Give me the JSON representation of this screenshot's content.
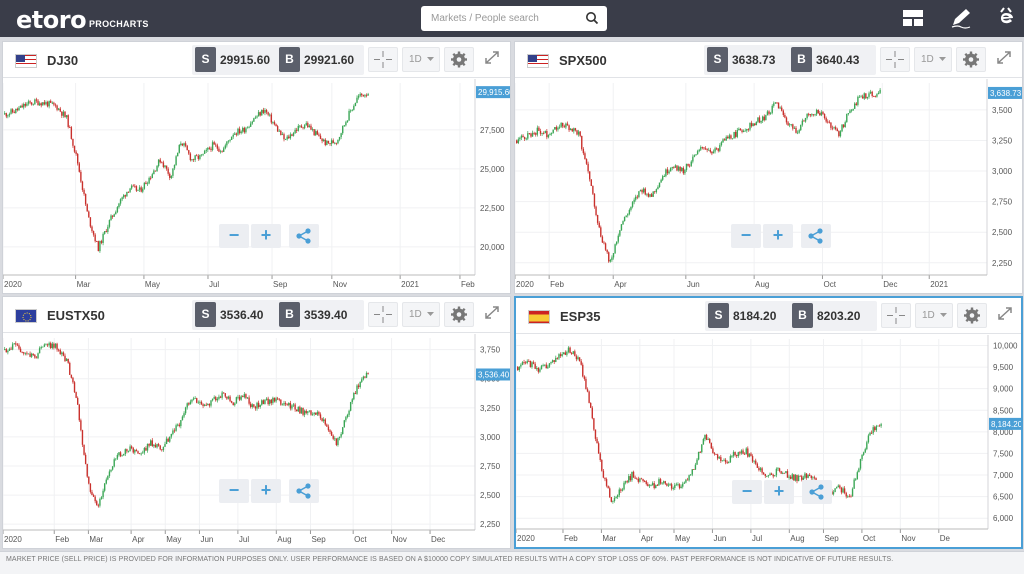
{
  "header": {
    "logo_text": "etoro",
    "logo_sub": "PROCHARTS",
    "search": {
      "placeholder": "Markets / People search"
    },
    "icons": [
      "layout-icon",
      "pencil-icon",
      "etoro-e-icon"
    ]
  },
  "panels": [
    {
      "id": "dj30",
      "instrument": "DJ30",
      "flag": "us-flag-icon",
      "sell_label": "S",
      "sell": "29915.60",
      "buy_label": "B",
      "buy": "29921.60",
      "timeframe": "1D",
      "active": false,
      "chart_data": {
        "type": "candlestick",
        "y_ticks": [
          "27,500",
          "25,000",
          "22,500",
          "20,000"
        ],
        "y_tick_values": [
          27500,
          25000,
          22500,
          20000
        ],
        "ylim": [
          18200,
          30500
        ],
        "x_ticks": [
          "2020",
          "Mar",
          "May",
          "Jul",
          "Sep",
          "Nov",
          "2021",
          "Feb"
        ],
        "x_tick_pos": [
          0.0,
          0.17,
          0.33,
          0.48,
          0.63,
          0.77,
          0.93,
          1.07
        ],
        "last_price": 29915.6,
        "last_label": "29,915.60",
        "path": [
          28500,
          28700,
          29100,
          29300,
          29200,
          29000,
          28200,
          25500,
          22000,
          19900,
          21500,
          22800,
          23800,
          23600,
          24500,
          25600,
          24500,
          26800,
          25600,
          25800,
          26500,
          26200,
          27300,
          27500,
          28200,
          28800,
          27800,
          26800,
          27500,
          27900,
          27200,
          26600,
          26800,
          28300,
          29600,
          29915
        ]
      }
    },
    {
      "id": "spx500",
      "instrument": "SPX500",
      "flag": "us-flag-icon",
      "sell_label": "S",
      "sell": "3638.73",
      "buy_label": "B",
      "buy": "3640.43",
      "timeframe": "1D",
      "active": false,
      "chart_data": {
        "type": "candlestick",
        "y_ticks": [
          "3,500",
          "3,250",
          "3,000",
          "2,750",
          "2,500",
          "2,250"
        ],
        "y_tick_values": [
          3500,
          3250,
          3000,
          2750,
          2500,
          2250
        ],
        "ylim": [
          2150,
          3720
        ],
        "x_ticks": [
          "2020",
          "Feb",
          "Apr",
          "Jun",
          "Aug",
          "Oct",
          "Dec",
          "2021"
        ],
        "x_tick_pos": [
          0.0,
          0.08,
          0.23,
          0.4,
          0.56,
          0.72,
          0.86,
          0.97
        ],
        "last_price": 3638.73,
        "last_label": "3,638.73",
        "path": [
          3250,
          3290,
          3330,
          3300,
          3380,
          3360,
          3300,
          2950,
          2500,
          2250,
          2550,
          2700,
          2850,
          2800,
          2950,
          3050,
          3000,
          3100,
          3200,
          3150,
          3250,
          3300,
          3350,
          3400,
          3450,
          3560,
          3400,
          3330,
          3450,
          3500,
          3400,
          3300,
          3480,
          3600,
          3630,
          3638
        ]
      }
    },
    {
      "id": "eustx50",
      "instrument": "EUSTX50",
      "flag": "eu-flag-icon",
      "sell_label": "S",
      "sell": "3536.40",
      "buy_label": "B",
      "buy": "3539.40",
      "timeframe": "1D",
      "active": false,
      "chart_data": {
        "type": "candlestick",
        "y_ticks": [
          "3,750",
          "3,500",
          "3,250",
          "3,000",
          "2,750",
          "2,500",
          "2,250"
        ],
        "y_tick_values": [
          3750,
          3500,
          3250,
          3000,
          2750,
          2500,
          2250
        ],
        "ylim": [
          2200,
          3850
        ],
        "x_ticks": [
          "2020",
          "Feb",
          "Mar",
          "Apr",
          "May",
          "Jun",
          "Jul",
          "Aug",
          "Sep",
          "Oct",
          "Nov",
          "Dec"
        ],
        "x_tick_pos": [
          0.0,
          0.12,
          0.2,
          0.3,
          0.38,
          0.46,
          0.55,
          0.64,
          0.72,
          0.82,
          0.91,
          1.0
        ],
        "last_price": 3536.4,
        "last_label": "3,536.40",
        "path": [
          3750,
          3780,
          3720,
          3700,
          3800,
          3780,
          3650,
          3300,
          2600,
          2400,
          2700,
          2850,
          2900,
          2850,
          2950,
          2900,
          3000,
          3150,
          3350,
          3280,
          3300,
          3380,
          3300,
          3350,
          3250,
          3300,
          3320,
          3280,
          3250,
          3200,
          3220,
          3100,
          2950,
          3200,
          3450,
          3536
        ]
      }
    },
    {
      "id": "esp35",
      "instrument": "ESP35",
      "flag": "es-flag-icon",
      "sell_label": "S",
      "sell": "8184.20",
      "buy_label": "B",
      "buy": "8203.20",
      "timeframe": "1D",
      "active": true,
      "chart_data": {
        "type": "candlestick",
        "y_ticks": [
          "10,000",
          "9,500",
          "9,000",
          "8,500",
          "8,000",
          "7,500",
          "7,000",
          "6,500",
          "6,000"
        ],
        "y_tick_values": [
          10000,
          9500,
          9000,
          8500,
          8000,
          7500,
          7000,
          6500,
          6000
        ],
        "ylim": [
          5750,
          10150
        ],
        "x_ticks": [
          "2020",
          "Feb",
          "Mar",
          "Apr",
          "May",
          "Jun",
          "Jul",
          "Aug",
          "Sep",
          "Oct",
          "Nov",
          "De"
        ],
        "x_tick_pos": [
          0.0,
          0.11,
          0.2,
          0.29,
          0.37,
          0.46,
          0.55,
          0.64,
          0.72,
          0.81,
          0.9,
          0.99
        ],
        "last_price": 8184.2,
        "last_label": "8,184.20",
        "path": [
          9500,
          9600,
          9450,
          9550,
          9750,
          9900,
          9600,
          8600,
          7200,
          6400,
          6700,
          7000,
          6850,
          6750,
          6900,
          6700,
          6800,
          7200,
          7900,
          7500,
          7300,
          7500,
          7550,
          7200,
          6950,
          7100,
          7000,
          6900,
          7000,
          6800,
          6600,
          6700,
          6500,
          7300,
          8000,
          8184
        ]
      }
    }
  ],
  "zoom": {
    "minus": "−",
    "plus": "+"
  },
  "footer": {
    "disclaimer": "MARKET PRICE (SELL PRICE) IS PROVIDED FOR INFORMATION PURPOSES ONLY. USER PERFORMANCE IS BASED ON A $10000 COPY SIMULATED RESULTS WITH A COPY STOP LOSS OF 60%. PAST PERFORMANCE IS NOT INDICATIVE OF FUTURE RESULTS."
  },
  "colors": {
    "up": "#3aa655",
    "down": "#c9302c",
    "accent": "#4a9fd6",
    "header_bg": "#3a3d49"
  }
}
